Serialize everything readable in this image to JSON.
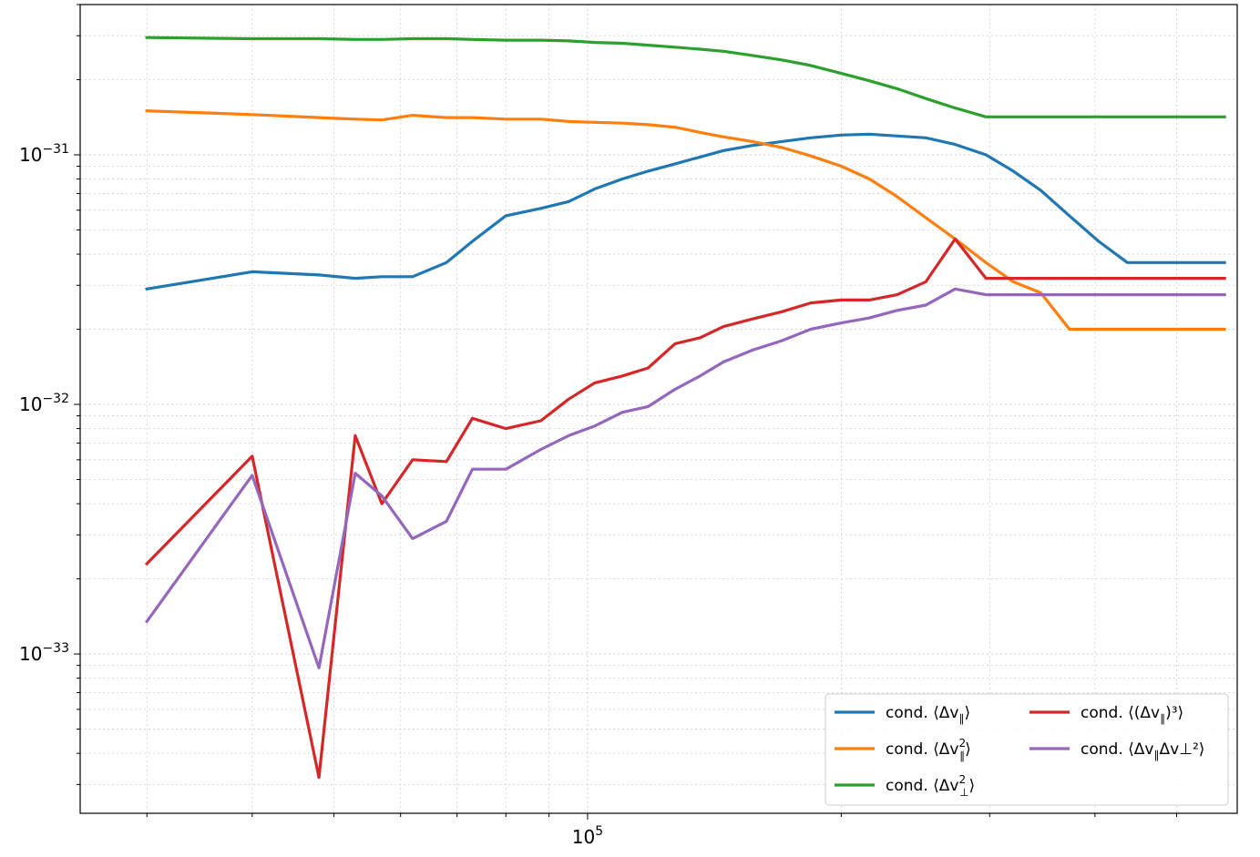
{
  "chart_data": {
    "type": "line",
    "title": "",
    "xlabel": "",
    "ylabel": "",
    "xscale": "log",
    "yscale": "log",
    "xlim": [
      25000,
      590000
    ],
    "ylim": [
      2.3e-34,
      4e-31
    ],
    "grid": "on (major and minor, dotted)",
    "legend_placement": "lower-right",
    "legend_columns": 2,
    "x_tick_labels": [
      {
        "value": 100000,
        "base": "10",
        "exp": "5"
      }
    ],
    "y_tick_labels": [
      {
        "value": 1e-33,
        "base": "10",
        "exp": "−33"
      },
      {
        "value": 1e-32,
        "base": "10",
        "exp": "−32"
      },
      {
        "value": 1e-31,
        "base": "10",
        "exp": "−31"
      }
    ],
    "x": [
      30000,
      40000,
      48000,
      53000,
      57000,
      62000,
      68000,
      73000,
      80000,
      88000,
      95000,
      102000,
      110000,
      118000,
      127000,
      136000,
      145000,
      157000,
      170000,
      184000,
      200000,
      216000,
      233000,
      252000,
      273000,
      297000,
      320000,
      345000,
      373000,
      404000,
      437000,
      475000,
      520000,
      570000
    ],
    "series": [
      {
        "name": "cond. ⟨Δv∥⟩",
        "legend_main": "cond. ⟨Δv",
        "legend_sub": "∥",
        "legend_sup": "",
        "legend_tail": "⟩",
        "color": "#1f77b4",
        "values": [
          2.9e-32,
          3.4e-32,
          3.3e-32,
          3.2e-32,
          3.25e-32,
          3.25e-32,
          3.7e-32,
          4.5e-32,
          5.7e-32,
          6.1e-32,
          6.5e-32,
          7.3e-32,
          8e-32,
          8.6e-32,
          9.2e-32,
          9.8e-32,
          1.04e-31,
          1.09e-31,
          1.13e-31,
          1.17e-31,
          1.2e-31,
          1.21e-31,
          1.19e-31,
          1.17e-31,
          1.1e-31,
          1e-31,
          8.6e-32,
          7.2e-32,
          5.7e-32,
          4.5e-32,
          3.7e-32,
          3.7e-32,
          3.7e-32,
          3.7e-32
        ]
      },
      {
        "name": "cond. ⟨Δv∥²⟩",
        "legend_main": "cond. ⟨Δv",
        "legend_sub": "∥",
        "legend_sup": "2",
        "legend_tail": "⟩",
        "color": "#ff7f0e",
        "values": [
          1.5e-31,
          1.45e-31,
          1.41e-31,
          1.39e-31,
          1.38e-31,
          1.44e-31,
          1.41e-31,
          1.41e-31,
          1.39e-31,
          1.39e-31,
          1.36e-31,
          1.35e-31,
          1.34e-31,
          1.32e-31,
          1.29e-31,
          1.23e-31,
          1.18e-31,
          1.13e-31,
          1.07e-31,
          9.9e-32,
          9e-32,
          8e-32,
          6.8e-32,
          5.6e-32,
          4.6e-32,
          3.7e-32,
          3.1e-32,
          2.8e-32,
          2e-32,
          2e-32,
          2e-32,
          2e-32,
          2e-32,
          2e-32
        ]
      },
      {
        "name": "cond. ⟨Δv⊥²⟩",
        "legend_main": "cond. ⟨Δv",
        "legend_sub": "⊥",
        "legend_sup": "2",
        "legend_tail": "⟩",
        "color": "#2ca02c",
        "values": [
          2.95e-31,
          2.92e-31,
          2.92e-31,
          2.9e-31,
          2.9e-31,
          2.92e-31,
          2.92e-31,
          2.9e-31,
          2.88e-31,
          2.88e-31,
          2.86e-31,
          2.82e-31,
          2.8e-31,
          2.75e-31,
          2.7e-31,
          2.65e-31,
          2.6e-31,
          2.5e-31,
          2.4e-31,
          2.28e-31,
          2.12e-31,
          1.98e-31,
          1.84e-31,
          1.68e-31,
          1.54e-31,
          1.42e-31,
          1.42e-31,
          1.42e-31,
          1.42e-31,
          1.42e-31,
          1.42e-31,
          1.42e-31,
          1.42e-31,
          1.42e-31
        ]
      },
      {
        "name": "cond. ⟨(Δv∥)³⟩",
        "legend_main": "cond. ⟨(Δv",
        "legend_sub": "∥",
        "legend_sup": "",
        "legend_tail": ")³⟩",
        "color": "#d62728",
        "values": [
          2.3e-33,
          6.2e-33,
          3.2e-34,
          7.5e-33,
          4e-33,
          6e-33,
          5.9e-33,
          8.8e-33,
          8e-33,
          8.6e-33,
          1.05e-32,
          1.22e-32,
          1.3e-32,
          1.4e-32,
          1.75e-32,
          1.85e-32,
          2.05e-32,
          2.2e-32,
          2.35e-32,
          2.55e-32,
          2.62e-32,
          2.62e-32,
          2.75e-32,
          3.1e-32,
          4.6e-32,
          3.2e-32,
          3.2e-32,
          3.2e-32,
          3.2e-32,
          3.2e-32,
          3.2e-32,
          3.2e-32,
          3.2e-32,
          3.2e-32
        ]
      },
      {
        "name": "cond. ⟨Δv∥Δv⊥²⟩",
        "legend_main": "cond. ⟨Δv",
        "legend_sub": "∥",
        "legend_sup": "",
        "legend_tail": "Δv⊥²⟩",
        "color": "#9467bd",
        "values": [
          1.35e-33,
          5.2e-33,
          8.8e-34,
          5.3e-33,
          4.3e-33,
          2.9e-33,
          3.4e-33,
          5.5e-33,
          5.5e-33,
          6.6e-33,
          7.5e-33,
          8.2e-33,
          9.3e-33,
          9.8e-33,
          1.15e-32,
          1.3e-32,
          1.48e-32,
          1.65e-32,
          1.8e-32,
          2e-32,
          2.12e-32,
          2.22e-32,
          2.38e-32,
          2.5e-32,
          2.9e-32,
          2.75e-32,
          2.75e-32,
          2.75e-32,
          2.75e-32,
          2.75e-32,
          2.75e-32,
          2.75e-32,
          2.75e-32,
          2.75e-32
        ]
      }
    ]
  }
}
